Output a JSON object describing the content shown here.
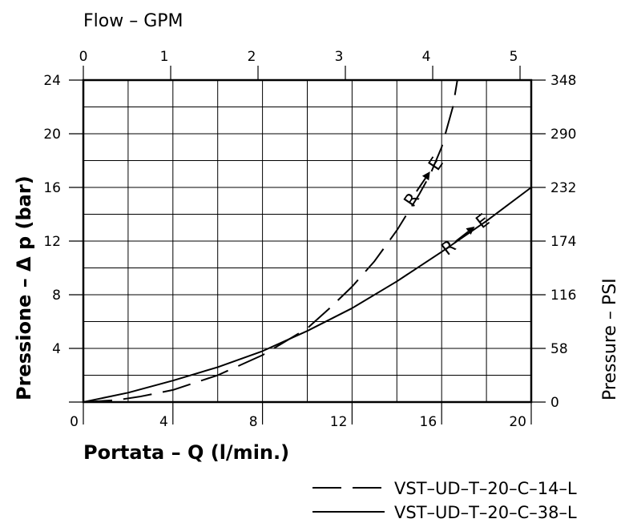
{
  "chart_data": {
    "type": "line",
    "x_top": {
      "title": "Flow  –  GPM",
      "ticks": [
        "0",
        "1",
        "2",
        "3",
        "4",
        "5"
      ],
      "range": [
        0,
        5
      ]
    },
    "x_bottom": {
      "title": "Portata  –  Q  (l/min.)",
      "ticks": [
        "0",
        "4",
        "8",
        "12",
        "16",
        "20"
      ],
      "range": [
        0,
        20
      ]
    },
    "y_left": {
      "title": "Pressione  –  Δ p  (bar)",
      "ticks": [
        "0",
        "4",
        "8",
        "12",
        "16",
        "20",
        "24"
      ],
      "range": [
        0,
        24
      ]
    },
    "y_right": {
      "title": "Pressure  –  PSI",
      "ticks": [
        "0",
        "58",
        "116",
        "174",
        "232",
        "290",
        "348"
      ]
    },
    "grid": true,
    "series": [
      {
        "name": "VST–UD–T–20–C–14–L",
        "style": "dashed",
        "label": "R–E",
        "x": [
          0,
          1.5,
          2.5,
          4,
          6,
          8,
          10,
          11,
          12,
          13,
          14,
          15,
          15.5,
          16,
          16.5,
          16.7
        ],
        "y": [
          0,
          0.15,
          0.4,
          0.9,
          2.0,
          3.5,
          5.5,
          7.0,
          8.6,
          10.5,
          12.8,
          15.5,
          17.0,
          19.0,
          22.0,
          24.0
        ]
      },
      {
        "name": "VST–UD–T–20–C–38–L",
        "style": "solid",
        "label": "R–E",
        "x": [
          0,
          2,
          4,
          6,
          8,
          10,
          12,
          14,
          16,
          18,
          20
        ],
        "y": [
          0,
          0.7,
          1.6,
          2.6,
          3.8,
          5.3,
          7.0,
          9.0,
          11.2,
          13.5,
          16.0
        ]
      }
    ]
  }
}
